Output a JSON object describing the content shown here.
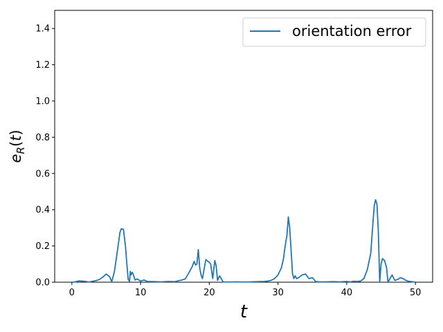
{
  "chart_data": {
    "type": "line",
    "title": "",
    "xlabel": "t",
    "ylabel": "e_R(t)",
    "xlim": [
      -2.5,
      52.5
    ],
    "ylim": [
      0,
      1.5
    ],
    "xticks": [
      0,
      10,
      20,
      30,
      40,
      50
    ],
    "xtick_labels": [
      "0",
      "10",
      "20",
      "30",
      "40",
      "50"
    ],
    "yticks": [
      0.0,
      0.2,
      0.4,
      0.6,
      0.8,
      1.0,
      1.2,
      1.4
    ],
    "ytick_labels": [
      "0.0",
      "0.2",
      "0.4",
      "0.6",
      "0.8",
      "1.0",
      "1.2",
      "1.4"
    ],
    "grid": false,
    "legend_position": "top-right",
    "colors": {
      "series": "#1f77b4"
    },
    "series": [
      {
        "name": "orientation error",
        "x": [
          0,
          0.5,
          1,
          1.5,
          2,
          2.5,
          3,
          3.5,
          4,
          4.5,
          5,
          5.5,
          5.8,
          6.2,
          6.5,
          6.8,
          7.0,
          7.2,
          7.5,
          7.8,
          8.0,
          8.2,
          8.4,
          8.5,
          8.6,
          8.8,
          9.0,
          9.2,
          9.5,
          10,
          10.5,
          11,
          12,
          13,
          14,
          15,
          15.5,
          16,
          16.5,
          17,
          17.5,
          17.8,
          18.0,
          18.2,
          18.4,
          18.6,
          18.8,
          19.0,
          19.5,
          19.8,
          20.0,
          20.2,
          20.5,
          20.8,
          21.0,
          21.2,
          21.5,
          22.0,
          23,
          24,
          25,
          26,
          27,
          28,
          28.5,
          29,
          29.5,
          30,
          30.5,
          30.8,
          31.0,
          31.3,
          31.5,
          31.7,
          31.9,
          32.1,
          32.3,
          32.5,
          32.7,
          33.0,
          33.5,
          34.0,
          34.5,
          35.0,
          35.5,
          36,
          37,
          38,
          39,
          40,
          40.5,
          41,
          41.5,
          42,
          42.5,
          43,
          43.5,
          43.8,
          44.0,
          44.2,
          44.4,
          44.6,
          44.8,
          45.0,
          45.2,
          45.5,
          45.8,
          46.0,
          46.3,
          46.6,
          47.0,
          47.4,
          47.8,
          48.2,
          48.6,
          49.0,
          49.5,
          50
        ],
        "values": [
          0.0,
          0.002,
          0.007,
          0.006,
          0.004,
          0.001,
          0.005,
          0.008,
          0.015,
          0.028,
          0.045,
          0.03,
          0.002,
          0.06,
          0.14,
          0.22,
          0.275,
          0.295,
          0.292,
          0.2,
          0.1,
          0.015,
          0.005,
          0.06,
          0.04,
          0.055,
          0.035,
          0.012,
          0.018,
          0.006,
          0.012,
          0.004,
          0.003,
          0.002,
          0.004,
          0.003,
          0.008,
          0.012,
          0.018,
          0.05,
          0.085,
          0.115,
          0.095,
          0.1,
          0.18,
          0.08,
          0.04,
          0.02,
          0.125,
          0.115,
          0.11,
          0.1,
          0.02,
          0.12,
          0.09,
          0.01,
          0.035,
          0.002,
          0.001,
          0.002,
          0.001,
          0.002,
          0.003,
          0.004,
          0.006,
          0.01,
          0.02,
          0.04,
          0.08,
          0.13,
          0.19,
          0.26,
          0.36,
          0.3,
          0.18,
          0.05,
          0.02,
          0.035,
          0.02,
          0.025,
          0.04,
          0.045,
          0.02,
          0.025,
          0.003,
          0.002,
          0.002,
          0.003,
          0.002,
          0.004,
          0.002,
          0.005,
          0.004,
          0.006,
          0.02,
          0.07,
          0.16,
          0.32,
          0.42,
          0.455,
          0.43,
          0.28,
          0.0,
          0.1,
          0.13,
          0.12,
          0.08,
          0.0,
          0.02,
          0.04,
          0.01,
          0.015,
          0.025,
          0.02,
          0.01,
          0.005,
          0.003,
          0.0
        ]
      }
    ]
  }
}
